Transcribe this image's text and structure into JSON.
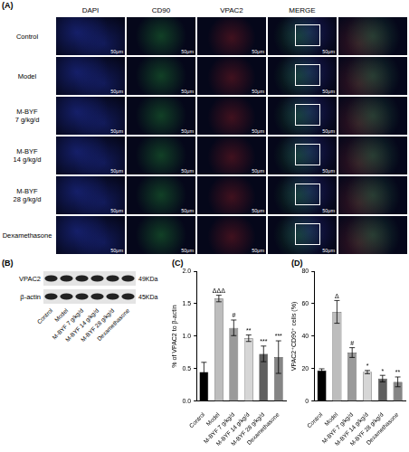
{
  "panel_a": {
    "label": "(A)",
    "columns": [
      "DAPI",
      "CD90",
      "VPAC2",
      "MERGE"
    ],
    "rows": [
      [
        "Control"
      ],
      [
        "Model"
      ],
      [
        "M-BYF",
        "7 g/kg/d"
      ],
      [
        "M-BYF",
        "14 g/kg/d"
      ],
      [
        "M-BYF",
        "28 g/kg/d"
      ],
      [
        "Dexamethasone"
      ]
    ],
    "scale_bar": "50μm"
  },
  "panel_b": {
    "label": "(B)",
    "bands": [
      {
        "name": "VPAC2",
        "size": "49KDa"
      },
      {
        "name": "β-actin",
        "size": "45KDa"
      }
    ],
    "lanes": [
      "Control",
      "Model",
      "M-BYF 7 g/kg/d",
      "M-BYF 14 g/kg/d",
      "M-BYF 28 g/kg/d",
      "Dexamethasone"
    ]
  },
  "chart_data": [
    {
      "panel": "(C)",
      "type": "bar",
      "y_label": "% of VPAC2 to β-actin",
      "categories": [
        "Control",
        "Model",
        "M-BYF 7 g/kg/d",
        "M-BYF 14 g/kg/d",
        "M-BYF 28 g/kg/d",
        "Dexamethasone"
      ],
      "values": [
        0.45,
        1.58,
        1.13,
        0.97,
        0.73,
        0.68
      ],
      "errors": [
        0.15,
        0.05,
        0.12,
        0.05,
        0.12,
        0.25
      ],
      "annotations": [
        null,
        "ΔΔΔ",
        "#",
        "**",
        "***",
        "***"
      ],
      "colors": [
        "#000000",
        "#bdbdbd",
        "#9a9a9a",
        "#d6d6d6",
        "#5f5f5f",
        "#858585"
      ],
      "ylim": [
        0,
        2
      ],
      "yticks": [
        {
          "value": 0,
          "label": "0.0"
        },
        {
          "value": 0.5,
          "label": "0.5"
        },
        {
          "value": 1,
          "label": "1.0"
        },
        {
          "value": 1.5,
          "label": "1.5"
        },
        {
          "value": 2,
          "label": "2.0"
        }
      ],
      "grid": false
    },
    {
      "panel": "(D)",
      "type": "bar",
      "y_label": "VPAC2⁺CD90⁺ cells (%)",
      "categories": [
        "Control",
        "Model",
        "M-BYF 7 g/kg/d",
        "M-BYF 14 g/kg/d",
        "M-BYF 28 g/kg/d",
        "Dexamethasone"
      ],
      "values": [
        19,
        55,
        30,
        18,
        14,
        12
      ],
      "errors": [
        1,
        7,
        3,
        1,
        2,
        3
      ],
      "annotations": [
        null,
        "Δ",
        "#",
        "*",
        "*",
        "**"
      ],
      "colors": [
        "#000000",
        "#bdbdbd",
        "#9a9a9a",
        "#d6d6d6",
        "#5f5f5f",
        "#858585"
      ],
      "ylim": [
        0,
        80
      ],
      "yticks": [
        0,
        20,
        40,
        60,
        80
      ],
      "grid": false
    }
  ]
}
